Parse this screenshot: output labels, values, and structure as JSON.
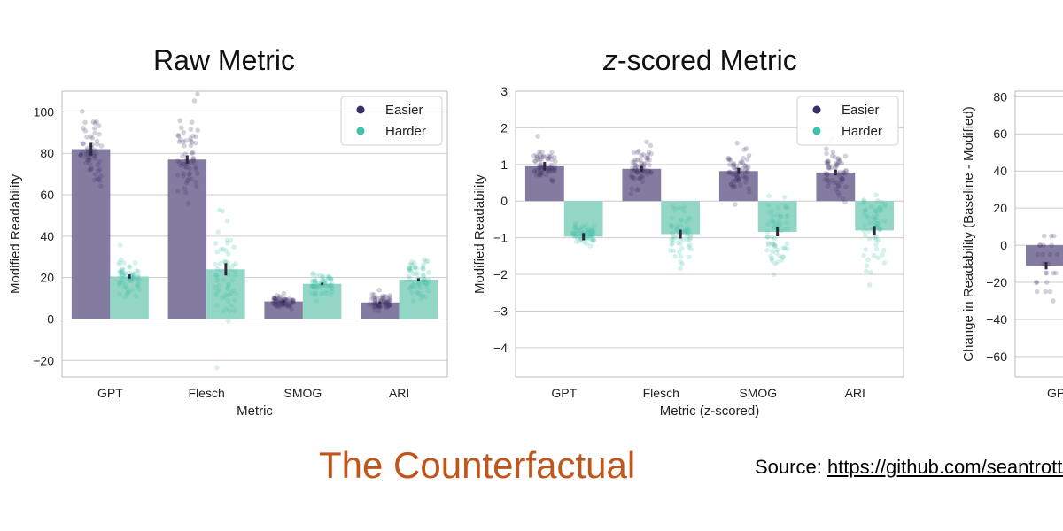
{
  "titles": {
    "raw": "Raw Metric",
    "z_italic": "z",
    "z_rest": "-scored Metric"
  },
  "caption": "The Counterfactual",
  "source": {
    "label": "Source: ",
    "link_text": "https://github.com/seantrott/"
  },
  "colors": {
    "easier": "#3b2f66",
    "harder": "#3fc1a8",
    "easier_bar": "#847ca0",
    "harder_bar": "#93d6c5",
    "grid": "#cccccc",
    "axis": "#bbbbbb"
  },
  "chart_data": [
    {
      "id": "raw",
      "type": "bar",
      "categories": [
        "GPT",
        "Flesch",
        "SMOG",
        "ARI"
      ],
      "series": [
        {
          "name": "Easier",
          "values": [
            82,
            77,
            8.5,
            8
          ]
        },
        {
          "name": "Harder",
          "values": [
            20.5,
            24,
            17,
            19
          ]
        }
      ],
      "errors": [
        [
          3,
          2,
          0.5,
          0.5
        ],
        [
          1,
          3,
          0.5,
          0.7
        ]
      ],
      "xlabel": "Metric",
      "ylabel": "Modified Readability",
      "ylim": [
        -28,
        110
      ],
      "yticks": [
        -20,
        0,
        20,
        40,
        60,
        80,
        100
      ],
      "ytick_labels": [
        "−20",
        "0",
        "20",
        "40",
        "60",
        "80",
        "100"
      ],
      "legend": [
        "Easier",
        "Harder"
      ],
      "legend_position": "top-right",
      "grid": true
    },
    {
      "id": "z",
      "type": "bar",
      "categories": [
        "GPT",
        "Flesch",
        "SMOG",
        "ARI"
      ],
      "series": [
        {
          "name": "Easier",
          "values": [
            0.95,
            0.88,
            0.82,
            0.78
          ]
        },
        {
          "name": "Harder",
          "values": [
            -0.97,
            -0.9,
            -0.84,
            -0.8
          ]
        }
      ],
      "errors": [
        [
          0.12,
          0.08,
          0.08,
          0.08
        ],
        [
          0.1,
          0.12,
          0.12,
          0.12
        ]
      ],
      "xlabel": "Metric (z-scored)",
      "ylabel": "Modified Readability",
      "ylim": [
        -4.8,
        3.0
      ],
      "yticks": [
        -4,
        -3,
        -2,
        -1,
        0,
        1,
        2,
        3
      ],
      "ytick_labels": [
        "−4",
        "−3",
        "−2",
        "−1",
        "0",
        "1",
        "2",
        "3"
      ],
      "legend": [
        "Easier",
        "Harder"
      ],
      "legend_position": "top-right",
      "grid": true
    },
    {
      "id": "change",
      "type": "bar",
      "categories": [
        "GPT"
      ],
      "category_labels": [
        "GP"
      ],
      "series": [
        {
          "name": "Easier",
          "values": [
            -11
          ]
        }
      ],
      "errors": [
        [
          2
        ]
      ],
      "xlabel": "",
      "ylabel": "Change in Readability (Baseline - Modified)",
      "ylim": [
        -71,
        83
      ],
      "yticks": [
        -60,
        -40,
        -20,
        0,
        20,
        40,
        60,
        80
      ],
      "ytick_labels": [
        "−60",
        "−40",
        "−20",
        "0",
        "20",
        "40",
        "60",
        "80"
      ],
      "grid": true
    }
  ]
}
